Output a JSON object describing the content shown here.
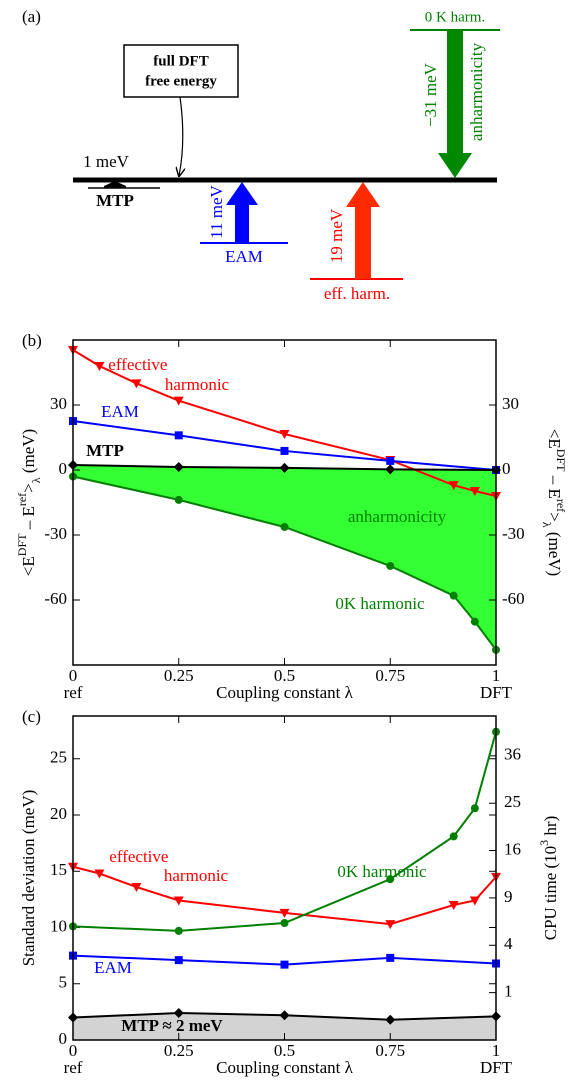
{
  "panel_a": {
    "label": "(a)",
    "box": [
      "full DFT",
      "free energy"
    ],
    "mtp": {
      "value": "1 meV",
      "name": "MTP"
    },
    "eam": {
      "value": "11 meV",
      "name": "EAM"
    },
    "eff": {
      "value": "19 meV",
      "name": "eff. harm."
    },
    "harm": {
      "name": "0 K harm.",
      "value": "−31 meV",
      "effect": "anharmonicity"
    }
  },
  "chart_data": [
    {
      "type": "line",
      "label": "(b)",
      "xlabel": "Coupling constant λ",
      "ylabel": [
        "<E",
        "DFT",
        " – E",
        "ref",
        ">",
        "λ",
        " (meV)"
      ],
      "xlim": [
        0,
        1
      ],
      "xticks": [
        0,
        0.25,
        0.5,
        0.75,
        1
      ],
      "xtick_sublabels": [
        "ref",
        null,
        null,
        null,
        "DFT"
      ],
      "ylim": [
        -90,
        60
      ],
      "yticks": [
        -60,
        -30,
        0,
        30
      ],
      "right_tick_labels": true,
      "fill_between": {
        "series": [
          "0K harmonic",
          "MTP"
        ],
        "color": "#33ff33",
        "label": "anharmonicity"
      },
      "series": [
        {
          "name": "effective harmonic",
          "color": "#ff0000",
          "marker": "v",
          "x": [
            0,
            0.0625,
            0.15,
            0.25,
            0.5,
            0.75,
            0.9,
            0.95,
            1
          ],
          "values": [
            55.4,
            48,
            40,
            32,
            16.6,
            4.6,
            -7,
            -9.7,
            -12
          ]
        },
        {
          "name": "EAM",
          "color": "#0000ff",
          "marker": "s",
          "x": [
            0,
            0.25,
            0.5,
            0.75,
            1
          ],
          "values": [
            22.6,
            16,
            8.8,
            4.2,
            0
          ]
        },
        {
          "name": "MTP",
          "color": "#000000",
          "marker": "D",
          "x": [
            0,
            0.25,
            0.5,
            0.75,
            1
          ],
          "values": [
            2.3,
            1.4,
            1,
            0.3,
            0
          ]
        },
        {
          "name": "0K harmonic",
          "color": "#008000",
          "marker": "o",
          "x": [
            0,
            0.25,
            0.5,
            0.75,
            0.9,
            0.95,
            1
          ],
          "values": [
            -3,
            -13.8,
            -26.3,
            -44.3,
            -58,
            -70,
            -83
          ]
        }
      ]
    },
    {
      "type": "line",
      "label": "(c)",
      "xlabel": "Coupling constant λ",
      "ylabel": [
        "Standard deviation (meV)"
      ],
      "y2label": [
        "CPU time (10",
        "3",
        " hr)"
      ],
      "xlim": [
        0,
        1
      ],
      "xticks": [
        0,
        0.25,
        0.5,
        0.75,
        1
      ],
      "xtick_sublabels": [
        "ref",
        null,
        null,
        null,
        "DFT"
      ],
      "ylim": [
        0,
        28.8
      ],
      "yticks": [
        0,
        5,
        10,
        15,
        20,
        25
      ],
      "y2lim": [
        0,
        46.8
      ],
      "y2scale": "sqrt",
      "y2ticks": [
        1,
        4,
        9,
        16,
        25,
        36
      ],
      "fill_below": {
        "series": "MTP",
        "color": "#d3d3d3",
        "label": "MTP ≈ 2 meV"
      },
      "series": [
        {
          "name": "effective harmonic",
          "color": "#ff0000",
          "marker": "v",
          "x": [
            0,
            0.0625,
            0.15,
            0.25,
            0.5,
            0.75,
            0.9,
            0.95,
            1
          ],
          "values": [
            15.4,
            14.8,
            13.6,
            12.4,
            11.3,
            10.3,
            12.0,
            12.4,
            14.5
          ]
        },
        {
          "name": "EAM",
          "color": "#0000ff",
          "marker": "s",
          "x": [
            0,
            0.25,
            0.5,
            0.75,
            1
          ],
          "values": [
            7.5,
            7.1,
            6.7,
            7.3,
            6.8
          ]
        },
        {
          "name": "MTP",
          "color": "#000000",
          "marker": "D",
          "x": [
            0,
            0.25,
            0.5,
            0.75,
            1
          ],
          "values": [
            2.0,
            2.4,
            2.2,
            1.8,
            2.1
          ]
        },
        {
          "name": "0K harmonic",
          "color": "#008000",
          "marker": "o",
          "x": [
            0,
            0.25,
            0.5,
            0.75,
            0.9,
            0.95,
            1
          ],
          "values": [
            10.1,
            9.7,
            10.4,
            14.3,
            18.1,
            20.6,
            27.4
          ]
        }
      ]
    }
  ]
}
